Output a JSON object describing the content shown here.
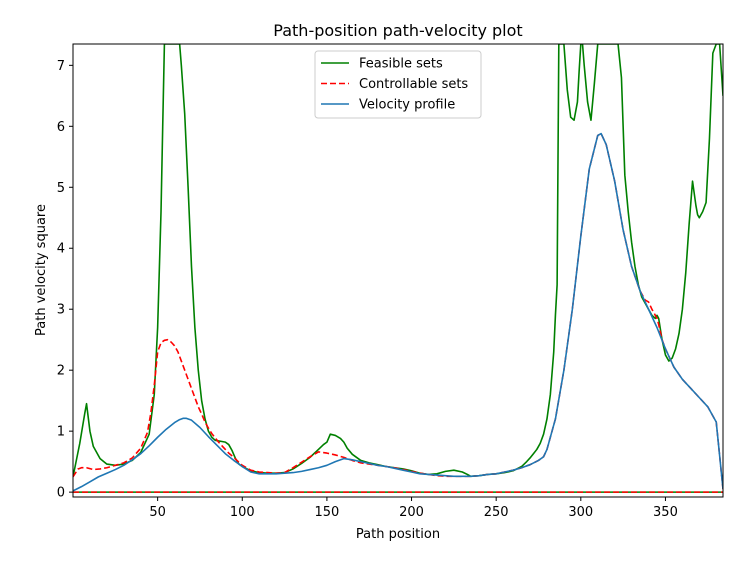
{
  "chart_data": {
    "type": "line",
    "title": "Path-position path-velocity plot",
    "xlabel": "Path position",
    "ylabel": "Path velocity square",
    "xlim": [
      0,
      384
    ],
    "ylim": [
      -0.08,
      7.35
    ],
    "xticks": [
      50,
      100,
      150,
      200,
      250,
      300,
      350
    ],
    "yticks": [
      0,
      1,
      2,
      3,
      4,
      5,
      6,
      7
    ],
    "grid": false,
    "legend_position": "top-center",
    "colors": {
      "feasible": "#008000",
      "controllable": "#ff0000",
      "velocity": "#1f77b4"
    },
    "series": [
      {
        "name": "Feasible sets",
        "style": "solid",
        "color": "#008000",
        "upper": {
          "x": [
            0,
            4,
            7,
            8,
            10,
            12,
            16,
            20,
            25,
            30,
            35,
            40,
            45,
            48,
            50,
            52,
            53,
            54,
            56,
            58,
            60,
            62,
            63,
            64,
            66,
            68,
            70,
            72,
            74,
            76,
            78,
            80,
            82,
            84,
            86,
            88,
            90,
            92,
            94,
            96,
            98,
            100,
            105,
            110,
            115,
            120,
            125,
            130,
            135,
            140,
            145,
            148,
            150,
            152,
            155,
            158,
            160,
            162,
            165,
            170,
            175,
            180,
            185,
            190,
            195,
            200,
            205,
            210,
            215,
            220,
            225,
            230,
            233,
            235,
            240,
            245,
            250,
            255,
            260,
            265,
            268,
            270,
            272,
            274,
            276,
            278,
            280,
            282,
            284,
            285,
            286,
            287,
            288,
            290,
            292,
            294,
            296,
            298,
            299,
            300,
            301,
            302,
            304,
            306,
            308,
            310,
            311,
            312,
            314,
            316,
            318,
            319,
            320,
            322,
            324,
            325,
            326,
            328,
            330,
            332,
            334,
            336,
            338,
            340,
            342,
            344,
            345,
            346,
            348,
            350,
            352,
            354,
            356,
            358,
            360,
            362,
            364,
            366,
            368,
            369,
            370,
            372,
            374,
            376,
            378,
            380,
            382,
            384
          ],
          "y": [
            0.25,
            0.8,
            1.3,
            1.45,
            1.0,
            0.75,
            0.55,
            0.46,
            0.44,
            0.46,
            0.52,
            0.65,
            0.95,
            1.6,
            2.7,
            4.6,
            6.0,
            7.35,
            7.35,
            7.35,
            7.35,
            7.35,
            7.35,
            7.0,
            6.2,
            5.0,
            3.7,
            2.7,
            2.0,
            1.5,
            1.2,
            1.0,
            0.9,
            0.85,
            0.84,
            0.83,
            0.82,
            0.78,
            0.68,
            0.55,
            0.46,
            0.42,
            0.35,
            0.32,
            0.31,
            0.31,
            0.32,
            0.38,
            0.47,
            0.57,
            0.7,
            0.78,
            0.82,
            0.95,
            0.93,
            0.88,
            0.82,
            0.72,
            0.62,
            0.52,
            0.48,
            0.45,
            0.42,
            0.4,
            0.38,
            0.35,
            0.31,
            0.29,
            0.3,
            0.34,
            0.36,
            0.33,
            0.29,
            0.26,
            0.27,
            0.29,
            0.3,
            0.32,
            0.35,
            0.42,
            0.5,
            0.56,
            0.63,
            0.7,
            0.8,
            0.95,
            1.2,
            1.6,
            2.3,
            2.9,
            3.4,
            7.35,
            7.35,
            7.35,
            6.6,
            6.15,
            6.1,
            6.4,
            6.9,
            7.35,
            7.35,
            7.0,
            6.4,
            6.1,
            6.7,
            7.35,
            7.35,
            7.35,
            7.35,
            7.35,
            7.35,
            7.35,
            7.35,
            7.35,
            6.8,
            6.0,
            5.2,
            4.6,
            4.1,
            3.7,
            3.4,
            3.2,
            3.1,
            3.0,
            2.9,
            2.85,
            2.9,
            2.85,
            2.5,
            2.25,
            2.15,
            2.2,
            2.35,
            2.6,
            3.0,
            3.6,
            4.4,
            5.1,
            4.7,
            4.55,
            4.5,
            4.6,
            4.75,
            5.8,
            7.2,
            7.35,
            7.35,
            6.5
          ]
        },
        "lower": {
          "x": [
            0,
            384
          ],
          "y": [
            0,
            0
          ]
        }
      },
      {
        "name": "Controllable sets",
        "style": "dashed",
        "color": "#ff0000",
        "upper": {
          "x": [
            0,
            3,
            5,
            8,
            12,
            16,
            20,
            25,
            30,
            35,
            40,
            44,
            46,
            48,
            50,
            52,
            54,
            56,
            58,
            60,
            62,
            64,
            66,
            68,
            70,
            72,
            74,
            76,
            78,
            80,
            82,
            84,
            86,
            88,
            90,
            92,
            95,
            98,
            100,
            105,
            110,
            115,
            120,
            125,
            130,
            135,
            140,
            145,
            150,
            155,
            160,
            165,
            170,
            175,
            180,
            185,
            190,
            195,
            200,
            205,
            210,
            215,
            220,
            225,
            230,
            233,
            235,
            240,
            245,
            250,
            255,
            260,
            265,
            270,
            275,
            278,
            280,
            285,
            290,
            295,
            300,
            305,
            310,
            312,
            315,
            320,
            325,
            330,
            335,
            338,
            340,
            342,
            344,
            345,
            346,
            348,
            350,
            355,
            360,
            365,
            370,
            375,
            380,
            384
          ],
          "y": [
            0.25,
            0.38,
            0.4,
            0.4,
            0.37,
            0.38,
            0.4,
            0.44,
            0.48,
            0.56,
            0.72,
            0.98,
            1.3,
            1.75,
            2.3,
            2.45,
            2.49,
            2.5,
            2.46,
            2.4,
            2.3,
            2.15,
            2.0,
            1.85,
            1.7,
            1.55,
            1.4,
            1.28,
            1.15,
            1.05,
            0.96,
            0.89,
            0.82,
            0.76,
            0.7,
            0.64,
            0.57,
            0.49,
            0.44,
            0.36,
            0.33,
            0.32,
            0.31,
            0.32,
            0.4,
            0.49,
            0.58,
            0.66,
            0.64,
            0.61,
            0.57,
            0.52,
            0.48,
            0.46,
            0.44,
            0.42,
            0.4,
            0.37,
            0.34,
            0.31,
            0.29,
            0.27,
            0.26,
            0.26,
            0.26,
            0.26,
            0.26,
            0.27,
            0.29,
            0.3,
            0.33,
            0.36,
            0.4,
            0.45,
            0.52,
            0.58,
            0.7,
            1.2,
            2.0,
            3.0,
            4.2,
            5.3,
            5.85,
            5.88,
            5.7,
            5.1,
            4.3,
            3.7,
            3.3,
            3.15,
            3.12,
            3.0,
            2.9,
            2.85,
            2.75,
            2.5,
            2.35,
            2.05,
            1.85,
            1.7,
            1.55,
            1.4,
            1.15,
            0.05
          ]
        },
        "lower": {
          "x": [
            0,
            384
          ],
          "y": [
            0,
            0
          ]
        }
      },
      {
        "name": "Velocity profile",
        "style": "solid",
        "color": "#1f77b4",
        "x": [
          0,
          5,
          10,
          15,
          20,
          25,
          30,
          35,
          40,
          45,
          50,
          55,
          60,
          63,
          65,
          67,
          70,
          75,
          80,
          85,
          90,
          95,
          100,
          105,
          110,
          115,
          120,
          125,
          130,
          135,
          140,
          145,
          150,
          155,
          160,
          165,
          170,
          175,
          180,
          185,
          190,
          195,
          200,
          205,
          210,
          215,
          220,
          225,
          230,
          233,
          235,
          240,
          245,
          250,
          255,
          260,
          265,
          270,
          275,
          278,
          280,
          285,
          290,
          295,
          300,
          305,
          310,
          312,
          315,
          320,
          325,
          330,
          335,
          340,
          345,
          350,
          355,
          360,
          365,
          370,
          375,
          380,
          384
        ],
        "y": [
          0.02,
          0.09,
          0.17,
          0.25,
          0.31,
          0.37,
          0.44,
          0.53,
          0.63,
          0.76,
          0.9,
          1.03,
          1.14,
          1.19,
          1.21,
          1.21,
          1.18,
          1.06,
          0.91,
          0.77,
          0.63,
          0.52,
          0.42,
          0.33,
          0.3,
          0.3,
          0.3,
          0.31,
          0.32,
          0.34,
          0.37,
          0.4,
          0.44,
          0.5,
          0.55,
          0.53,
          0.5,
          0.47,
          0.44,
          0.42,
          0.39,
          0.36,
          0.33,
          0.3,
          0.29,
          0.28,
          0.27,
          0.26,
          0.26,
          0.26,
          0.26,
          0.27,
          0.29,
          0.3,
          0.33,
          0.36,
          0.4,
          0.45,
          0.52,
          0.58,
          0.7,
          1.2,
          2.0,
          3.0,
          4.2,
          5.3,
          5.85,
          5.88,
          5.7,
          5.1,
          4.3,
          3.7,
          3.3,
          3.0,
          2.7,
          2.35,
          2.05,
          1.85,
          1.7,
          1.55,
          1.4,
          1.15,
          0.05
        ]
      }
    ]
  }
}
